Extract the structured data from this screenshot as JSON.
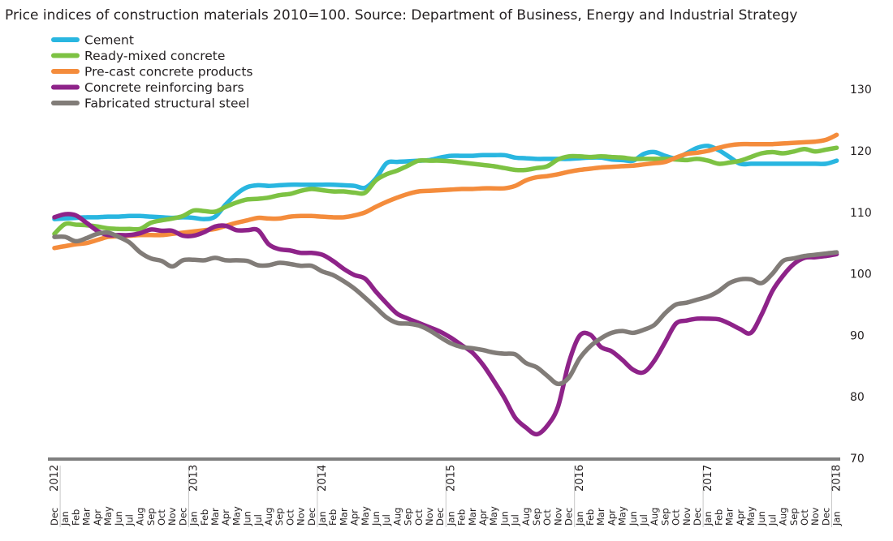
{
  "chart_data": {
    "type": "line",
    "title": "Price indices of construction materials 2010=100.  Source: Department of Business, Energy and Industrial Strategy",
    "xlabel": "",
    "ylabel": "",
    "ylim": [
      70,
      130
    ],
    "yticks": [
      "70",
      "80",
      "90",
      "100",
      "110",
      "120",
      "130"
    ],
    "ytick_values": [
      70,
      80,
      90,
      100,
      110,
      120,
      130
    ],
    "y_axis_side": "right",
    "grid": false,
    "legend_position": "top-left",
    "x_month_labels": [
      "Dec",
      "Jan",
      "Feb",
      "Mar",
      "Apr",
      "May",
      "Jun",
      "Jul",
      "Aug",
      "Sep",
      "Oct",
      "Nov",
      "Dec",
      "Jan",
      "Feb",
      "Mar",
      "Apr",
      "May",
      "Jun",
      "Jul",
      "Aug",
      "Sep",
      "Oct",
      "Nov",
      "Dec",
      "Jan",
      "Feb",
      "Mar",
      "Apr",
      "May",
      "Jun",
      "Jul",
      "Aug",
      "Sep",
      "Oct",
      "Nov",
      "Dec",
      "Jan",
      "Feb",
      "Mar",
      "Apr",
      "May",
      "Jun",
      "Jul",
      "Aug",
      "Sep",
      "Oct",
      "Nov",
      "Dec",
      "Jan",
      "Feb",
      "Mar",
      "Apr",
      "May",
      "Jun",
      "Jul",
      "Aug",
      "Sep",
      "Oct",
      "Nov",
      "Dec",
      "Jan",
      "Feb",
      "Mar",
      "Apr",
      "May",
      "Jun",
      "Jul",
      "Aug",
      "Sep",
      "Oct",
      "Nov",
      "Dec",
      "Jan"
    ],
    "x_year_labels": [
      {
        "label": "2012",
        "month_index": 0
      },
      {
        "label": "2013",
        "month_index": 13
      },
      {
        "label": "2014",
        "month_index": 25
      },
      {
        "label": "2015",
        "month_index": 37
      },
      {
        "label": "2016",
        "month_index": 49
      },
      {
        "label": "2017",
        "month_index": 61
      },
      {
        "label": "2018",
        "month_index": 73
      }
    ],
    "x_year_separators_after_month_index": [
      0,
      12,
      24,
      36,
      48,
      60,
      72
    ],
    "series": [
      {
        "name": "Cement",
        "color": "#29b6e0",
        "values": [
          108.9,
          109,
          109.1,
          109.2,
          109.2,
          109.3,
          109.3,
          109.4,
          109.4,
          109.3,
          109.2,
          109.1,
          109.2,
          109.1,
          108.9,
          109.3,
          111.3,
          113.0,
          114.1,
          114.4,
          114.3,
          114.4,
          114.5,
          114.5,
          114.5,
          114.5,
          114.5,
          114.4,
          114.3,
          114.0,
          115.5,
          118.0,
          118.2,
          118.3,
          118.4,
          118.5,
          118.9,
          119.2,
          119.2,
          119.2,
          119.3,
          119.3,
          119.3,
          118.9,
          118.8,
          118.7,
          118.7,
          118.7,
          118.7,
          118.8,
          118.9,
          118.9,
          118.6,
          118.5,
          118.4,
          119.5,
          119.8,
          119.2,
          118.8,
          119.6,
          120.5,
          120.8,
          120.1,
          119.0,
          117.9,
          117.9,
          117.9,
          117.9,
          117.9,
          117.9,
          117.9,
          117.9,
          117.9,
          118.4
        ]
      },
      {
        "name": "Ready-mixed concrete",
        "color": "#7dc243",
        "values": [
          106.5,
          108.1,
          108.0,
          107.9,
          107.7,
          107.4,
          107.3,
          107.3,
          107.3,
          108.3,
          108.7,
          109.0,
          109.4,
          110.3,
          110.2,
          110.1,
          110.9,
          111.6,
          112.1,
          112.2,
          112.4,
          112.8,
          113.0,
          113.5,
          113.8,
          113.6,
          113.4,
          113.4,
          113.2,
          113.2,
          115.2,
          116.2,
          116.8,
          117.6,
          118.4,
          118.4,
          118.4,
          118.3,
          118.1,
          117.9,
          117.7,
          117.5,
          117.2,
          116.9,
          116.9,
          117.2,
          117.5,
          118.6,
          119.1,
          119.1,
          119.0,
          119.1,
          119.0,
          118.9,
          118.7,
          118.7,
          118.7,
          118.7,
          118.6,
          118.5,
          118.7,
          118.4,
          117.9,
          118.1,
          118.4,
          119.0,
          119.6,
          119.8,
          119.6,
          119.9,
          120.3,
          119.9,
          120.2,
          120.5
        ]
      },
      {
        "name": "Pre-cast concrete products",
        "color": "#f48c3c",
        "values": [
          104.2,
          104.5,
          104.8,
          105.0,
          105.5,
          106.0,
          106.1,
          106.2,
          106.3,
          106.3,
          106.3,
          106.5,
          106.7,
          106.9,
          107.1,
          107.3,
          107.8,
          108.3,
          108.7,
          109.1,
          109.0,
          109.0,
          109.3,
          109.4,
          109.4,
          109.3,
          109.2,
          109.2,
          109.5,
          110.0,
          110.9,
          111.7,
          112.4,
          113.0,
          113.4,
          113.5,
          113.6,
          113.7,
          113.8,
          113.8,
          113.9,
          113.9,
          113.9,
          114.3,
          115.2,
          115.7,
          115.9,
          116.2,
          116.6,
          116.9,
          117.1,
          117.3,
          117.4,
          117.5,
          117.6,
          117.8,
          118.0,
          118.2,
          118.9,
          119.5,
          119.7,
          120.0,
          120.5,
          120.9,
          121.1,
          121.1,
          121.1,
          121.1,
          121.2,
          121.3,
          121.4,
          121.5,
          121.8,
          122.6
        ]
      },
      {
        "name": "Concrete reinforcing bars",
        "color": "#8e2389",
        "values": [
          109.2,
          109.7,
          109.5,
          108.3,
          107.0,
          106.3,
          106.3,
          106.3,
          106.6,
          107.2,
          107.0,
          107.0,
          106.2,
          106.2,
          106.8,
          107.7,
          107.8,
          107.1,
          107.1,
          107.1,
          104.8,
          104.0,
          103.8,
          103.4,
          103.4,
          103.1,
          102.1,
          100.8,
          99.8,
          99.2,
          97.1,
          95.2,
          93.5,
          92.7,
          92.0,
          91.3,
          90.6,
          89.6,
          88.4,
          87.2,
          85.2,
          82.6,
          79.8,
          76.6,
          75.0,
          73.9,
          75.3,
          78.4,
          85.5,
          89.9,
          90.1,
          88.1,
          87.4,
          86.0,
          84.4,
          84.0,
          85.9,
          88.9,
          91.9,
          92.4,
          92.7,
          92.7,
          92.6,
          91.9,
          91.0,
          90.4,
          93.4,
          97.2,
          99.7,
          101.6,
          102.6,
          102.7,
          102.9,
          103.2
        ]
      },
      {
        "name": "Fabricated structural steel",
        "color": "#817c78",
        "values": [
          106.0,
          106.0,
          105.3,
          105.8,
          106.5,
          106.7,
          106.0,
          105.1,
          103.5,
          102.5,
          102.1,
          101.2,
          102.2,
          102.3,
          102.2,
          102.6,
          102.2,
          102.2,
          102.1,
          101.4,
          101.4,
          101.8,
          101.6,
          101.3,
          101.3,
          100.4,
          99.8,
          98.8,
          97.6,
          96.1,
          94.5,
          92.9,
          92.0,
          91.9,
          91.6,
          90.8,
          89.7,
          88.7,
          88.1,
          87.9,
          87.6,
          87.2,
          87.0,
          86.9,
          85.5,
          84.8,
          83.4,
          82.1,
          83.1,
          86.2,
          88.2,
          89.5,
          90.4,
          90.7,
          90.4,
          90.9,
          91.7,
          93.6,
          95.0,
          95.3,
          95.8,
          96.3,
          97.2,
          98.5,
          99.1,
          99.1,
          98.5,
          100.0,
          102.1,
          102.5,
          102.9,
          103.1,
          103.3,
          103.5
        ]
      }
    ]
  }
}
